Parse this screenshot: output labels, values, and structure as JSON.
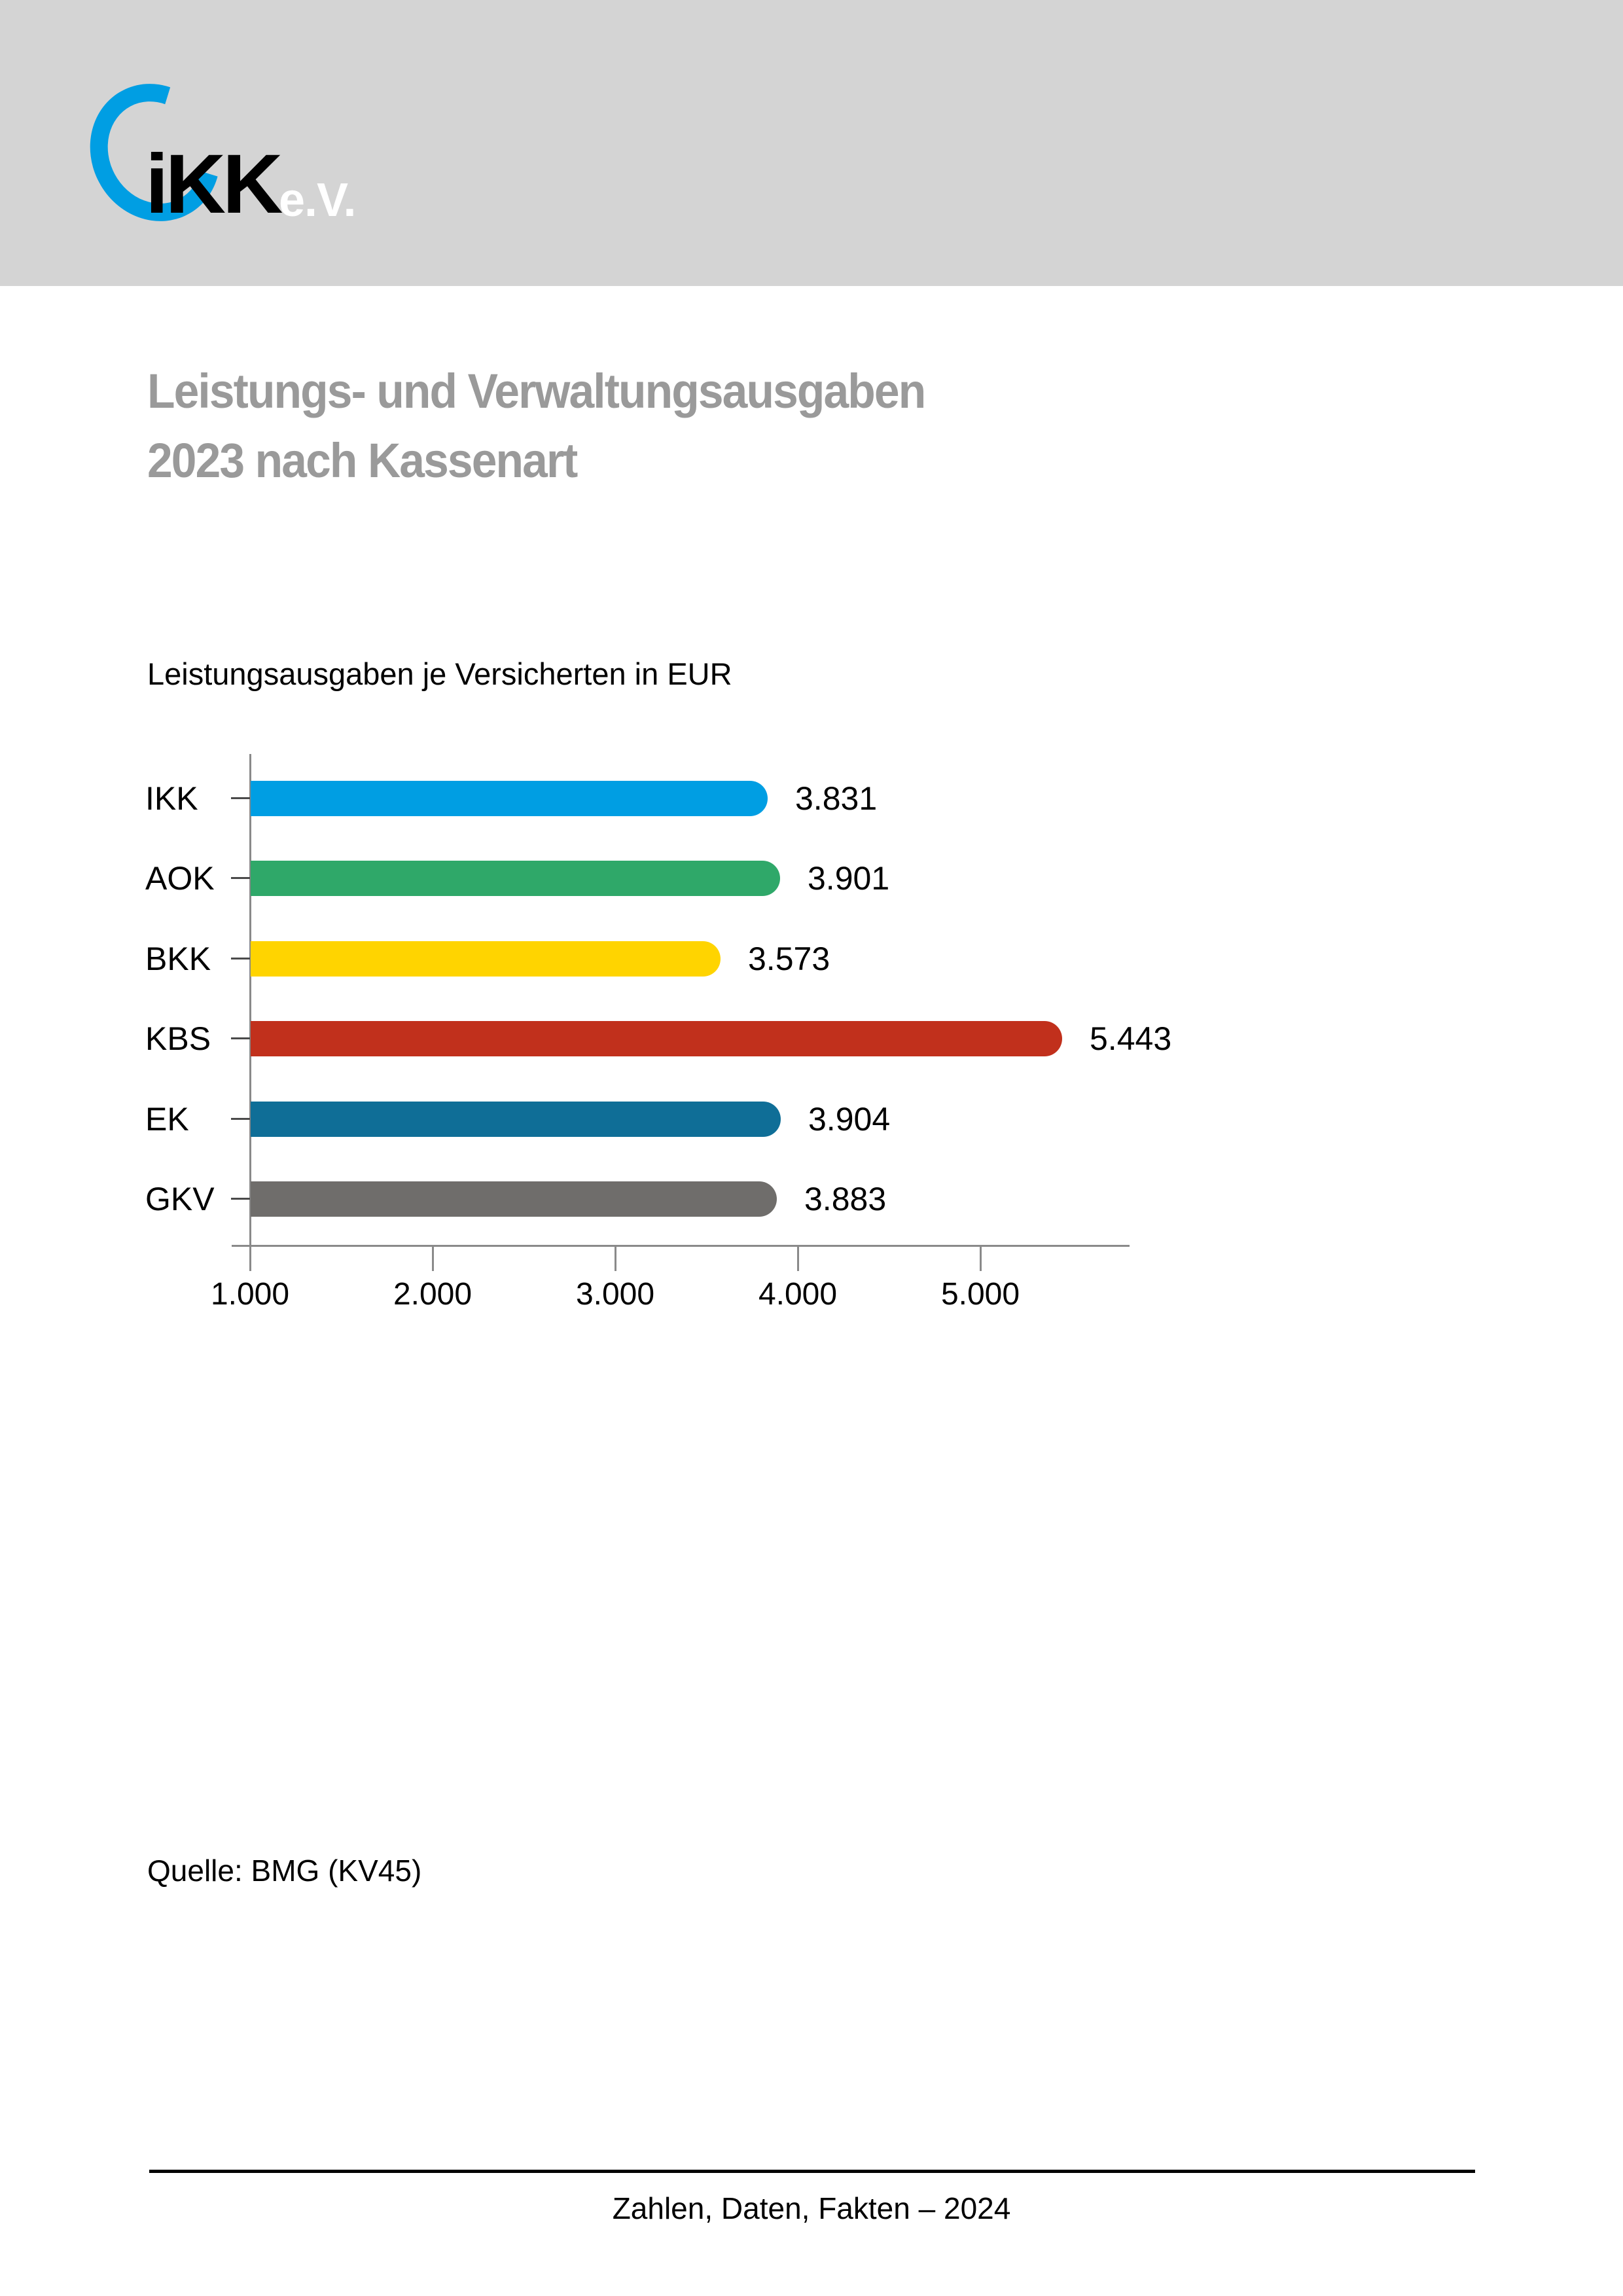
{
  "logo": {
    "main": "iKK",
    "suffix": "e.V."
  },
  "title": {
    "line1": "Leistungs- und Verwaltungsausgaben",
    "line2": "2023 nach Kassenart"
  },
  "chart_data": {
    "type": "bar",
    "orientation": "horizontal",
    "title": "Leistungsausgaben je Versicherten in EUR",
    "unit": "EUR",
    "categories": [
      "IKK",
      "AOK",
      "BKK",
      "KBS",
      "EK",
      "GKV"
    ],
    "values": [
      3831,
      3901,
      3573,
      5443,
      3904,
      3883
    ],
    "value_labels": [
      "3.831",
      "3.901",
      "3.573",
      "5.443",
      "3.904",
      "3.883"
    ],
    "bar_colors": [
      "#009ee3",
      "#2fa869",
      "#ffd400",
      "#c1301c",
      "#0f6e97",
      "#6f6d6b"
    ],
    "bar_base_value": 1000,
    "x_axis": {
      "min": 1000,
      "max": 5800,
      "ticks": [
        1000,
        2000,
        3000,
        4000,
        5000
      ],
      "tick_labels": [
        "1.000",
        "2.000",
        "3.000",
        "4.000",
        "5.000"
      ]
    },
    "grid": false,
    "legend": false
  },
  "source": "Quelle: BMG (KV45)",
  "footer": "Zahlen, Daten, Fakten – 2024",
  "colors": {
    "header_band": "#d4d4d4",
    "title_text": "#9a9a9a",
    "logo_blue": "#009ee3",
    "axis_line": "#8a8a8a",
    "category_tick": "#4a4a4a",
    "text": "#000000"
  }
}
